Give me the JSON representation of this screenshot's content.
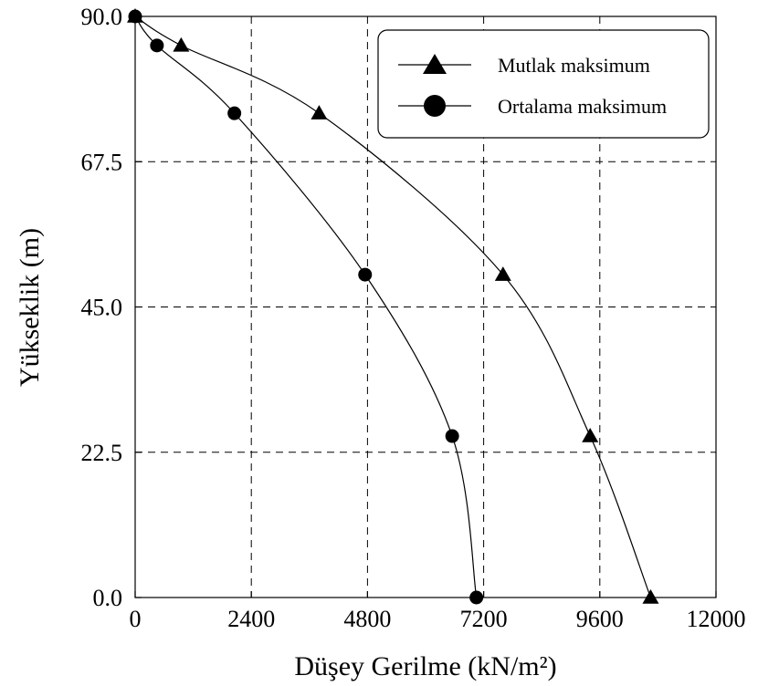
{
  "chart_data": {
    "type": "line",
    "xlabel": "Düşey Gerilme (kN/m²)",
    "ylabel": "Yükseklik (m)",
    "xlim": [
      0,
      12000
    ],
    "ylim": [
      0,
      90
    ],
    "xticks": [
      0,
      2400,
      4800,
      7200,
      9600,
      12000
    ],
    "xtick_labels": [
      "0",
      "2400",
      "4800",
      "7200",
      "9600",
      "12000"
    ],
    "yticks": [
      0,
      22.5,
      45,
      67.5,
      90
    ],
    "ytick_labels": [
      "0.0",
      "22.5",
      "45.0",
      "67.5",
      "90.0"
    ],
    "grid": true,
    "legend_position": "top-right",
    "series": [
      {
        "name": "Mutlak maksimum",
        "marker": "triangle",
        "color": "#000000",
        "x": [
          0,
          950,
          3800,
          7600,
          9400,
          10650
        ],
        "y": [
          90,
          85.5,
          75,
          50,
          25,
          0
        ]
      },
      {
        "name": "Ortalama maksimum",
        "marker": "circle",
        "color": "#000000",
        "x": [
          0,
          450,
          2050,
          4750,
          6550,
          7050
        ],
        "y": [
          90,
          85.5,
          75,
          50,
          25,
          0
        ]
      }
    ]
  }
}
